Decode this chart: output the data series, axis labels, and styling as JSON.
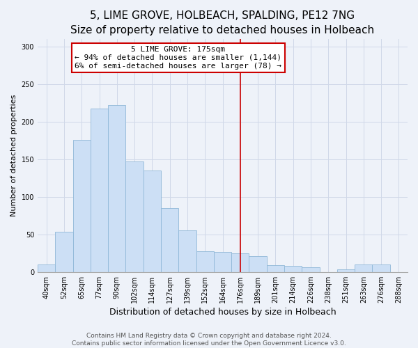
{
  "title": "5, LIME GROVE, HOLBEACH, SPALDING, PE12 7NG",
  "subtitle": "Size of property relative to detached houses in Holbeach",
  "xlabel": "Distribution of detached houses by size in Holbeach",
  "ylabel": "Number of detached properties",
  "categories": [
    "40sqm",
    "52sqm",
    "65sqm",
    "77sqm",
    "90sqm",
    "102sqm",
    "114sqm",
    "127sqm",
    "139sqm",
    "152sqm",
    "164sqm",
    "176sqm",
    "189sqm",
    "201sqm",
    "214sqm",
    "226sqm",
    "238sqm",
    "251sqm",
    "263sqm",
    "276sqm",
    "288sqm"
  ],
  "values": [
    10,
    54,
    176,
    218,
    222,
    147,
    135,
    85,
    55,
    28,
    27,
    25,
    21,
    9,
    8,
    6,
    0,
    4,
    10,
    10,
    0
  ],
  "bar_color": "#ccdff5",
  "bar_edge_color": "#90b8d8",
  "vline_index": 11,
  "annotation_line1": "5 LIME GROVE: 175sqm",
  "annotation_line2": "← 94% of detached houses are smaller (1,144)",
  "annotation_line3": "6% of semi-detached houses are larger (78) →",
  "annotation_box_color": "#ffffff",
  "annotation_box_edge_color": "#cc0000",
  "vline_color": "#cc0000",
  "ylim": [
    0,
    310
  ],
  "yticks": [
    0,
    50,
    100,
    150,
    200,
    250,
    300
  ],
  "footer_line1": "Contains HM Land Registry data © Crown copyright and database right 2024.",
  "footer_line2": "Contains public sector information licensed under the Open Government Licence v3.0.",
  "bg_color": "#eef2f9",
  "grid_color": "#d0d8e8",
  "title_fontsize": 11,
  "subtitle_fontsize": 9,
  "xlabel_fontsize": 9,
  "ylabel_fontsize": 8,
  "tick_fontsize": 7,
  "annotation_fontsize": 8,
  "footer_fontsize": 6.5
}
